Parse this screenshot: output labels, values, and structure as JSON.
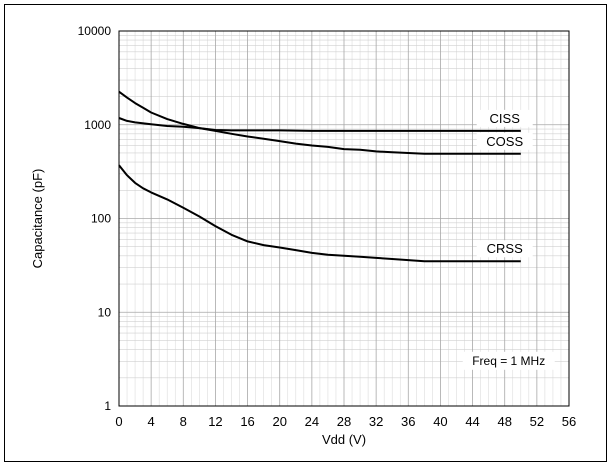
{
  "chart_data": {
    "type": "line",
    "xlabel": "Vdd (V)",
    "ylabel": "Capacitance (pF)",
    "xlim": [
      0,
      56
    ],
    "ylim": [
      1,
      10000
    ],
    "yscale": "log",
    "grid": true,
    "x_ticks": [
      "0",
      "4",
      "8",
      "12",
      "16",
      "20",
      "24",
      "28",
      "32",
      "36",
      "40",
      "44",
      "48",
      "52",
      "56"
    ],
    "y_ticks": [
      "1",
      "10",
      "100",
      "1000",
      "10000"
    ],
    "annotation": "Freq = 1 MHz",
    "series": [
      {
        "name": "CISS",
        "x": [
          0,
          1,
          2,
          3,
          4,
          6,
          8,
          10,
          12,
          14,
          16,
          20,
          24,
          28,
          32,
          36,
          40,
          44,
          48,
          50
        ],
        "y": [
          2250,
          1950,
          1700,
          1520,
          1350,
          1150,
          1020,
          920,
          880,
          870,
          870,
          870,
          860,
          860,
          860,
          860,
          860,
          860,
          860,
          860
        ]
      },
      {
        "name": "COSS",
        "x": [
          0,
          1,
          2,
          4,
          6,
          8,
          10,
          12,
          14,
          16,
          18,
          20,
          22,
          24,
          26,
          28,
          30,
          32,
          34,
          36,
          38,
          40,
          44,
          48,
          50
        ],
        "y": [
          1180,
          1100,
          1060,
          1010,
          970,
          950,
          920,
          860,
          800,
          750,
          710,
          670,
          630,
          600,
          580,
          550,
          540,
          520,
          510,
          500,
          490,
          490,
          490,
          490,
          490
        ]
      },
      {
        "name": "CRSS",
        "x": [
          0,
          1,
          2,
          3,
          4,
          6,
          8,
          10,
          12,
          14,
          16,
          18,
          20,
          22,
          24,
          26,
          28,
          30,
          32,
          34,
          36,
          38,
          40,
          44,
          48,
          50
        ],
        "y": [
          370,
          290,
          240,
          210,
          190,
          160,
          130,
          105,
          83,
          67,
          57,
          52,
          49,
          46,
          43,
          41,
          40,
          39,
          38,
          37,
          36,
          35,
          35,
          35,
          35,
          35
        ]
      }
    ]
  }
}
